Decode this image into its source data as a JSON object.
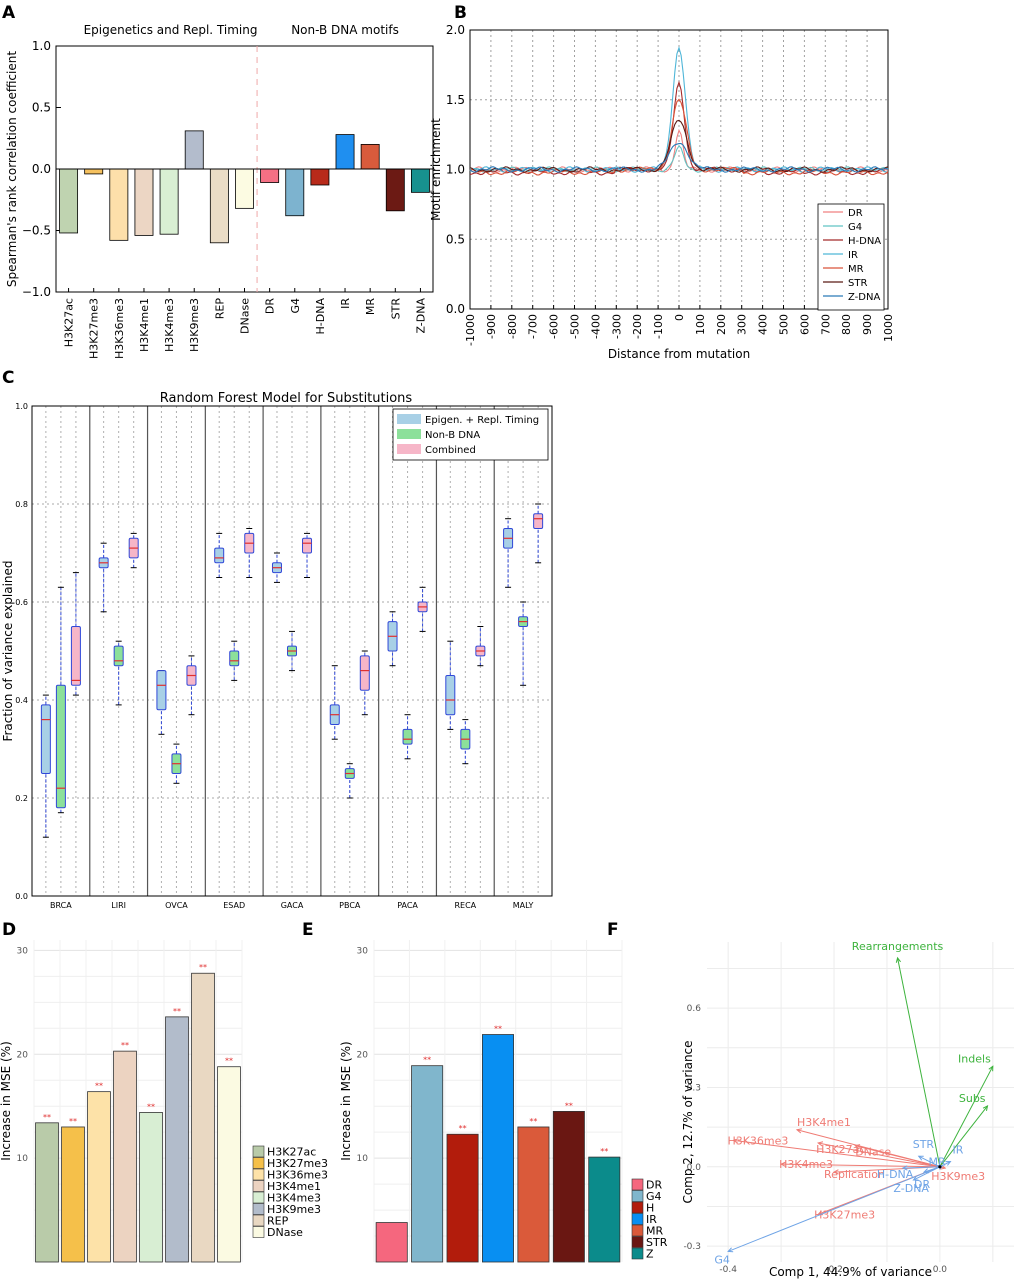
{
  "panels": [
    {
      "letter": "A",
      "chart_data": {
        "type": "bar",
        "group_titles": [
          "Epigenetics and Repl. Timing",
          "Non-B DNA motifs"
        ],
        "categories": [
          "H3K27ac",
          "H3K27me3",
          "H3K36me3",
          "H3K4me1",
          "H3K4me3",
          "H3K9me3",
          "REP",
          "DNase",
          "DR",
          "G4",
          "H-DNA",
          "IR",
          "MR",
          "STR",
          "Z-DNA"
        ],
        "values": [
          -0.52,
          -0.04,
          -0.58,
          -0.54,
          -0.53,
          0.31,
          -0.6,
          -0.32,
          -0.11,
          -0.38,
          -0.13,
          0.28,
          0.2,
          -0.34,
          -0.19
        ],
        "colors": [
          "#bfd3b0",
          "#f5c15f",
          "#fddfaa",
          "#ecd6c4",
          "#d9efd3",
          "#b3bccc",
          "#eadcc6",
          "#fcfbe2",
          "#f47084",
          "#7db3cf",
          "#b82a1a",
          "#1f8ff0",
          "#d85b3c",
          "#6c1a14",
          "#17918f"
        ],
        "ylabel": "Spearman's rank correlation coefficient",
        "ylim": [
          -1.0,
          1.0
        ],
        "yticks": [
          "1.0",
          "0.5",
          "0.0",
          "−0.5",
          "−1.0"
        ]
      }
    },
    {
      "letter": "B",
      "chart_data": {
        "type": "line",
        "xlabel": "Distance from mutation",
        "ylabel": "Motif enrichment",
        "xlim": [
          -1000,
          1000
        ],
        "ylim": [
          0.0,
          2.0
        ],
        "xticks": [
          "-1000",
          "-900",
          "-800",
          "-700",
          "-600",
          "-500",
          "-400",
          "-300",
          "-200",
          "-100",
          "0",
          "100",
          "200",
          "300",
          "400",
          "500",
          "600",
          "700",
          "800",
          "900",
          "1000"
        ],
        "yticks": [
          "2.0",
          "1.5",
          "1.0",
          "0.5",
          "0.0"
        ],
        "grid": true,
        "legend_position": "lower-right",
        "series": [
          {
            "name": "DR",
            "color": "#f08080",
            "peak": 1.28
          },
          {
            "name": "G4",
            "color": "#62c3c3",
            "peak": 1.15
          },
          {
            "name": "H-DNA",
            "color": "#a52a2a",
            "peak": 1.62
          },
          {
            "name": "IR",
            "color": "#4fb6d8",
            "peak": 1.88
          },
          {
            "name": "MR",
            "color": "#d9533a",
            "peak": 1.5
          },
          {
            "name": "STR",
            "color": "#5a1a14",
            "peak": 1.35
          },
          {
            "name": "Z-DNA",
            "color": "#2a7ab8",
            "peak": 1.2
          }
        ]
      }
    },
    {
      "letter": "C",
      "chart_data": {
        "type": "box",
        "title": "Random Forest Model for Substitutions",
        "ylabel": "Fraction of variance explained",
        "ylim": [
          0.0,
          1.0
        ],
        "yticks": [
          "1.0",
          "0.8",
          "0.6",
          "0.4",
          "0.2",
          "0.0"
        ],
        "categories": [
          "BRCA",
          "LIRI",
          "OVCA",
          "ESAD",
          "GACA",
          "PBCA",
          "PACA",
          "RECA",
          "MALY"
        ],
        "legend_position": "top-right",
        "series": [
          {
            "name": "Epigen. + Repl. Timing",
            "color": "#a8d0e6",
            "boxes": [
              [
                0.12,
                0.25,
                0.36,
                0.39,
                0.41
              ],
              [
                0.58,
                0.67,
                0.68,
                0.69,
                0.72
              ],
              [
                0.33,
                0.38,
                0.43,
                0.46,
                0.46
              ],
              [
                0.65,
                0.68,
                0.69,
                0.71,
                0.74
              ],
              [
                0.64,
                0.66,
                0.67,
                0.68,
                0.7
              ],
              [
                0.32,
                0.35,
                0.37,
                0.39,
                0.47
              ],
              [
                0.47,
                0.5,
                0.53,
                0.56,
                0.58
              ],
              [
                0.34,
                0.37,
                0.4,
                0.45,
                0.52
              ],
              [
                0.63,
                0.71,
                0.73,
                0.75,
                0.77
              ]
            ]
          },
          {
            "name": "Non-B DNA",
            "color": "#8ce09a",
            "boxes": [
              [
                0.17,
                0.18,
                0.22,
                0.43,
                0.63
              ],
              [
                0.39,
                0.47,
                0.48,
                0.51,
                0.52
              ],
              [
                0.23,
                0.25,
                0.27,
                0.29,
                0.31
              ],
              [
                0.44,
                0.47,
                0.48,
                0.5,
                0.52
              ],
              [
                0.46,
                0.49,
                0.5,
                0.51,
                0.54
              ],
              [
                0.2,
                0.24,
                0.25,
                0.26,
                0.27
              ],
              [
                0.28,
                0.31,
                0.32,
                0.34,
                0.37
              ],
              [
                0.27,
                0.3,
                0.32,
                0.34,
                0.36
              ],
              [
                0.43,
                0.55,
                0.56,
                0.57,
                0.6
              ]
            ]
          },
          {
            "name": "Combined",
            "color": "#f6b6c8",
            "boxes": [
              [
                0.41,
                0.43,
                0.44,
                0.55,
                0.66
              ],
              [
                0.67,
                0.69,
                0.71,
                0.73,
                0.74
              ],
              [
                0.37,
                0.43,
                0.45,
                0.47,
                0.49
              ],
              [
                0.65,
                0.7,
                0.72,
                0.74,
                0.75
              ],
              [
                0.65,
                0.7,
                0.72,
                0.73,
                0.74
              ],
              [
                0.37,
                0.42,
                0.46,
                0.49,
                0.5
              ],
              [
                0.54,
                0.58,
                0.59,
                0.6,
                0.63
              ],
              [
                0.47,
                0.49,
                0.5,
                0.51,
                0.55
              ],
              [
                0.68,
                0.75,
                0.77,
                0.78,
                0.8
              ]
            ]
          }
        ]
      }
    },
    {
      "letter": "D",
      "chart_data": {
        "type": "bar",
        "ylabel": "Increase in MSE (%)",
        "ylim": [
          0,
          31
        ],
        "yticks": [
          "30",
          "20",
          "10"
        ],
        "categories": [
          "H3K27ac",
          "H3K27me3",
          "H3K36me3",
          "H3K4me1",
          "H3K4me3",
          "H3K9me3",
          "REP",
          "DNase"
        ],
        "values": [
          13.4,
          13.0,
          16.4,
          20.3,
          14.4,
          23.6,
          27.8,
          18.8
        ],
        "significance": [
          "**",
          "**",
          "**",
          "**",
          "**",
          "**",
          "**",
          "**"
        ],
        "colors": [
          "#b9cba9",
          "#f5c04a",
          "#fde2a8",
          "#ecd3c1",
          "#d8eed3",
          "#b2bccb",
          "#e9d8c2",
          "#fbfae2"
        ],
        "legend_position": "right"
      }
    },
    {
      "letter": "E",
      "chart_data": {
        "type": "bar",
        "ylabel": "Increase in MSE (%)",
        "ylim": [
          0,
          31
        ],
        "yticks": [
          "30",
          "20",
          "10"
        ],
        "categories": [
          "DR",
          "G4",
          "H",
          "IR",
          "MR",
          "STR",
          "Z"
        ],
        "values": [
          3.8,
          18.9,
          12.3,
          21.9,
          13.0,
          14.5,
          10.1
        ],
        "significance": [
          "",
          "**",
          "**",
          "**",
          "**",
          "**",
          "**"
        ],
        "colors": [
          "#f5677e",
          "#80b6cc",
          "#b21c0c",
          "#088ff2",
          "#da5a3a",
          "#6a1712",
          "#0b8b8b"
        ],
        "legend_position": "right"
      }
    },
    {
      "letter": "F",
      "chart_data": {
        "type": "biplot",
        "xlabel": "Comp 1, 44.9% of variance",
        "ylabel": "Comp 2, 12.7% of variance",
        "xlim": [
          -0.44,
          0.14
        ],
        "ylim": [
          -0.36,
          0.85
        ],
        "xticks": [
          {
            "v": -0.4,
            "label": "-0.4"
          },
          {
            "v": -0.2,
            "label": "-0.2"
          },
          {
            "v": 0.0,
            "label": "0.0"
          }
        ],
        "yticks": [
          {
            "v": 0.6,
            "label": "0.6"
          },
          {
            "v": 0.3,
            "label": "0.3"
          },
          {
            "v": 0.0,
            "label": "0.0"
          },
          {
            "v": -0.3,
            "label": "-0.3"
          }
        ],
        "groups": {
          "green": "#3db33d",
          "red": "#ef7b74",
          "blue": "#6fa4e6"
        },
        "vectors": [
          {
            "label": "Rearrangements",
            "group": "green",
            "x": -0.08,
            "y": 0.79
          },
          {
            "label": "Indels",
            "group": "green",
            "x": 0.1,
            "y": 0.38
          },
          {
            "label": "Subs",
            "group": "green",
            "x": 0.09,
            "y": 0.23
          },
          {
            "label": "H3K36me3",
            "group": "red",
            "x": -0.39,
            "y": 0.1
          },
          {
            "label": "H3K4me1",
            "group": "red",
            "x": -0.27,
            "y": 0.14
          },
          {
            "label": "H3K27ac",
            "group": "red",
            "x": -0.23,
            "y": 0.09
          },
          {
            "label": "DNase",
            "group": "red",
            "x": -0.16,
            "y": 0.08
          },
          {
            "label": "H3K4me3",
            "group": "red",
            "x": -0.3,
            "y": 0.01
          },
          {
            "label": "Replication",
            "group": "red",
            "x": -0.2,
            "y": -0.02
          },
          {
            "label": "H3K27me3",
            "group": "red",
            "x": -0.23,
            "y": -0.18
          },
          {
            "label": "H3K9me3",
            "group": "red",
            "x": 0.01,
            "y": -0.005
          },
          {
            "label": "STR",
            "group": "blue",
            "x": -0.04,
            "y": 0.04
          },
          {
            "label": "MR",
            "group": "blue",
            "x": 0.005,
            "y": 0.005
          },
          {
            "label": "IR",
            "group": "blue",
            "x": 0.02,
            "y": 0.02
          },
          {
            "label": "H-DNA",
            "group": "blue",
            "x": -0.07,
            "y": -0.005
          },
          {
            "label": "DR",
            "group": "blue",
            "x": -0.03,
            "y": -0.02
          },
          {
            "label": "Z-DNA",
            "group": "blue",
            "x": -0.05,
            "y": -0.05
          },
          {
            "label": "G4",
            "group": "blue",
            "x": -0.4,
            "y": -0.32
          }
        ]
      }
    }
  ]
}
